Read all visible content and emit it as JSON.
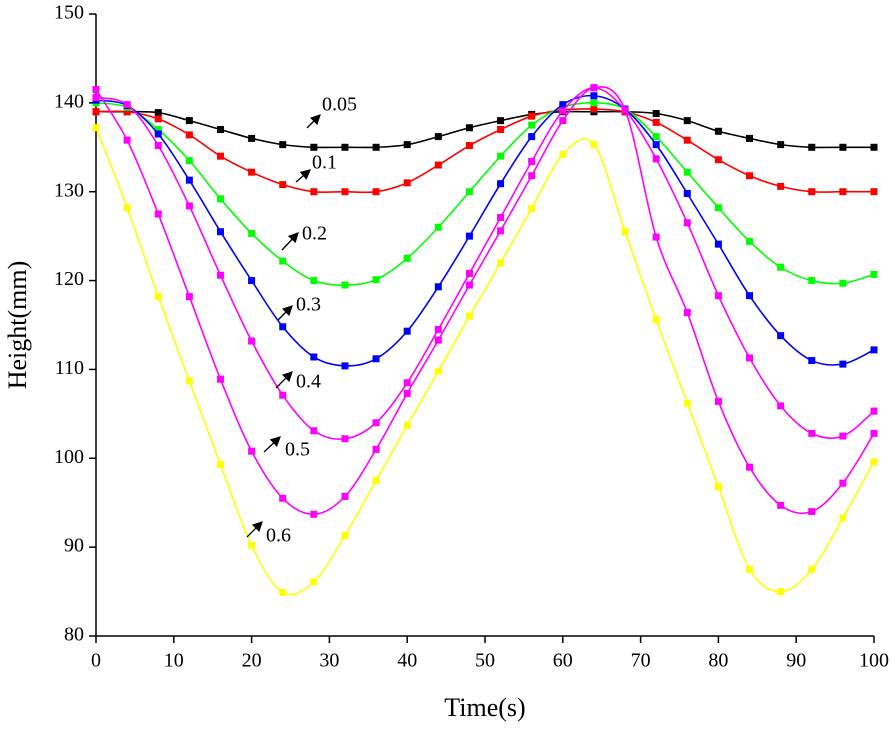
{
  "chart_data": {
    "type": "line",
    "x_label": "Time(s)",
    "y_label": "Height(mm)",
    "x": [
      0,
      4,
      8,
      12,
      16,
      20,
      24,
      28,
      32,
      36,
      40,
      44,
      48,
      52,
      56,
      60,
      64,
      68,
      72,
      76,
      80,
      84,
      88,
      92,
      96,
      100
    ],
    "xlim": [
      0,
      100
    ],
    "xticks": [
      0,
      10,
      20,
      30,
      40,
      50,
      60,
      70,
      80,
      90,
      100
    ],
    "ylim": [
      80,
      150
    ],
    "yticks": [
      80,
      90,
      100,
      110,
      120,
      130,
      140,
      150
    ],
    "series": [
      {
        "name": "0.05",
        "color": "#000000",
        "values": [
          139,
          139,
          138.9,
          138,
          137,
          136,
          135.3,
          135,
          135,
          135,
          135.3,
          136.2,
          137.2,
          138,
          138.7,
          139,
          139,
          139,
          138.8,
          138,
          136.8,
          136,
          135.3,
          135,
          135,
          135
        ]
      },
      {
        "name": "0.1",
        "color": "#ff0000",
        "values": [
          139,
          139,
          138.2,
          136.4,
          134,
          132.2,
          130.8,
          130,
          130,
          130,
          131,
          133,
          135.2,
          137,
          138.5,
          139.2,
          139.3,
          139,
          137.8,
          135.8,
          133.6,
          131.8,
          130.6,
          130,
          130,
          130
        ]
      },
      {
        "name": "0.2",
        "color": "#00ff00",
        "values": [
          140,
          139.5,
          137,
          133.5,
          129.2,
          125.3,
          122.2,
          120,
          119.5,
          120.1,
          122.5,
          126,
          130,
          134,
          137.5,
          139.5,
          140,
          139.3,
          136.2,
          132.2,
          128.2,
          124.4,
          121.5,
          120,
          119.7,
          120.7
        ]
      },
      {
        "name": "0.3",
        "color": "#0000ff",
        "values": [
          140.3,
          139.7,
          136.5,
          131.3,
          125.5,
          120,
          114.8,
          111.4,
          110.4,
          111.2,
          114.3,
          119.3,
          125,
          130.9,
          136.2,
          139.8,
          140.8,
          139.3,
          135.3,
          129.8,
          124.1,
          118.3,
          113.8,
          111,
          110.6,
          112.2
        ]
      },
      {
        "name": "0.4",
        "color": "#ff00ff",
        "values": [
          140.6,
          139.8,
          135.2,
          128.4,
          120.6,
          113.2,
          107.1,
          103.1,
          102.2,
          104,
          108.5,
          114.5,
          120.8,
          127.1,
          133.4,
          139.1,
          141.7,
          139.2,
          133.7,
          126.5,
          118.3,
          111.3,
          105.9,
          102.8,
          102.5,
          105.3
        ]
      },
      {
        "name": "0.5",
        "color": "#ff00ff",
        "values": [
          141.5,
          135.8,
          127.5,
          118.2,
          108.9,
          100.8,
          95.5,
          93.7,
          95.7,
          101,
          107.3,
          113.3,
          119.5,
          125.6,
          131.8,
          138,
          141.7,
          139.2,
          124.9,
          116.4,
          106.4,
          99,
          94.7,
          94,
          97.2,
          102.8
        ]
      },
      {
        "name": "0.6",
        "color": "#ffff00",
        "values": [
          137.2,
          128.2,
          118.2,
          108.7,
          99.3,
          90.2,
          84.9,
          86.1,
          91.3,
          97.5,
          103.7,
          109.8,
          116,
          122,
          128.1,
          134.2,
          135.3,
          125.5,
          115.6,
          106.2,
          96.8,
          87.5,
          85,
          87.5,
          93.3,
          99.6
        ]
      }
    ]
  }
}
